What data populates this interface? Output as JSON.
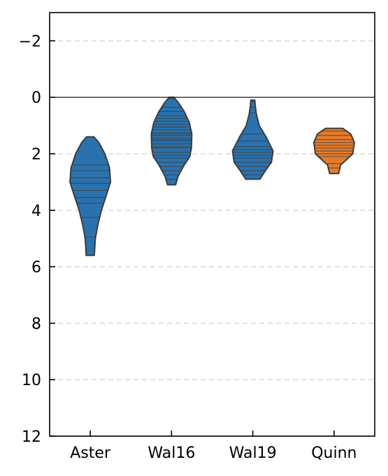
{
  "chart_data": {
    "type": "violin",
    "categories": [
      "Aster",
      "Wal16",
      "Wal19",
      "Quinn"
    ],
    "colors": [
      "#2a72ad",
      "#2a72ad",
      "#2a72ad",
      "#e57c2a"
    ],
    "edge_color": "#3d3d3d",
    "inverted_y": true,
    "ylim": [
      -3,
      12
    ],
    "yticks": [
      -2,
      0,
      2,
      4,
      6,
      8,
      10,
      12
    ],
    "ytick_labels": [
      "−2",
      "0",
      "2",
      "4",
      "6",
      "8",
      "10",
      "12"
    ],
    "grid": "y-dashed",
    "reference_line_y": 0,
    "violins": [
      {
        "name": "Aster",
        "profile": [
          [
            1.4,
            0.18
          ],
          [
            1.6,
            0.42
          ],
          [
            2.0,
            0.72
          ],
          [
            2.5,
            0.95
          ],
          [
            3.0,
            1.0
          ],
          [
            3.5,
            0.78
          ],
          [
            4.0,
            0.55
          ],
          [
            4.5,
            0.38
          ],
          [
            5.0,
            0.25
          ],
          [
            5.6,
            0.2
          ]
        ],
        "lines": [
          1.4,
          2.4,
          2.6,
          2.85,
          3.05,
          3.3,
          3.55,
          3.75,
          4.25,
          4.95,
          5.6
        ]
      },
      {
        "name": "Wal16",
        "profile": [
          [
            0.0,
            0.12
          ],
          [
            0.2,
            0.35
          ],
          [
            0.5,
            0.62
          ],
          [
            0.9,
            0.88
          ],
          [
            1.3,
            1.0
          ],
          [
            1.8,
            0.98
          ],
          [
            2.1,
            0.9
          ],
          [
            2.4,
            0.62
          ],
          [
            2.8,
            0.32
          ],
          [
            3.1,
            0.2
          ]
        ],
        "lines": [
          0.05,
          0.35,
          0.5,
          0.65,
          0.75,
          0.85,
          0.95,
          1.05,
          1.15,
          1.25,
          1.3,
          1.35,
          1.45,
          1.5,
          1.55,
          1.65,
          1.75,
          1.8,
          1.95,
          2.05,
          2.15,
          2.3,
          2.45,
          2.6,
          2.75,
          2.9,
          3.1
        ]
      },
      {
        "name": "Wal19",
        "profile": [
          [
            0.1,
            0.1
          ],
          [
            0.3,
            0.12
          ],
          [
            0.6,
            0.18
          ],
          [
            1.0,
            0.32
          ],
          [
            1.4,
            0.65
          ],
          [
            1.9,
            1.0
          ],
          [
            2.3,
            0.92
          ],
          [
            2.6,
            0.62
          ],
          [
            2.9,
            0.35
          ]
        ],
        "lines": [
          0.15,
          0.35,
          0.55,
          1.3,
          1.55,
          1.75,
          1.85,
          1.95,
          2.05,
          2.15,
          2.3,
          2.45,
          2.6,
          2.75
        ]
      },
      {
        "name": "Quinn",
        "profile": [
          [
            1.1,
            0.42
          ],
          [
            1.3,
            0.82
          ],
          [
            1.6,
            1.0
          ],
          [
            2.0,
            0.92
          ],
          [
            2.2,
            0.62
          ],
          [
            2.4,
            0.32
          ],
          [
            2.7,
            0.22
          ]
        ],
        "lines": [
          1.2,
          1.35,
          1.5,
          1.6,
          1.7,
          1.8,
          1.9,
          2.0,
          2.1,
          2.35,
          2.5,
          2.7
        ]
      }
    ]
  }
}
